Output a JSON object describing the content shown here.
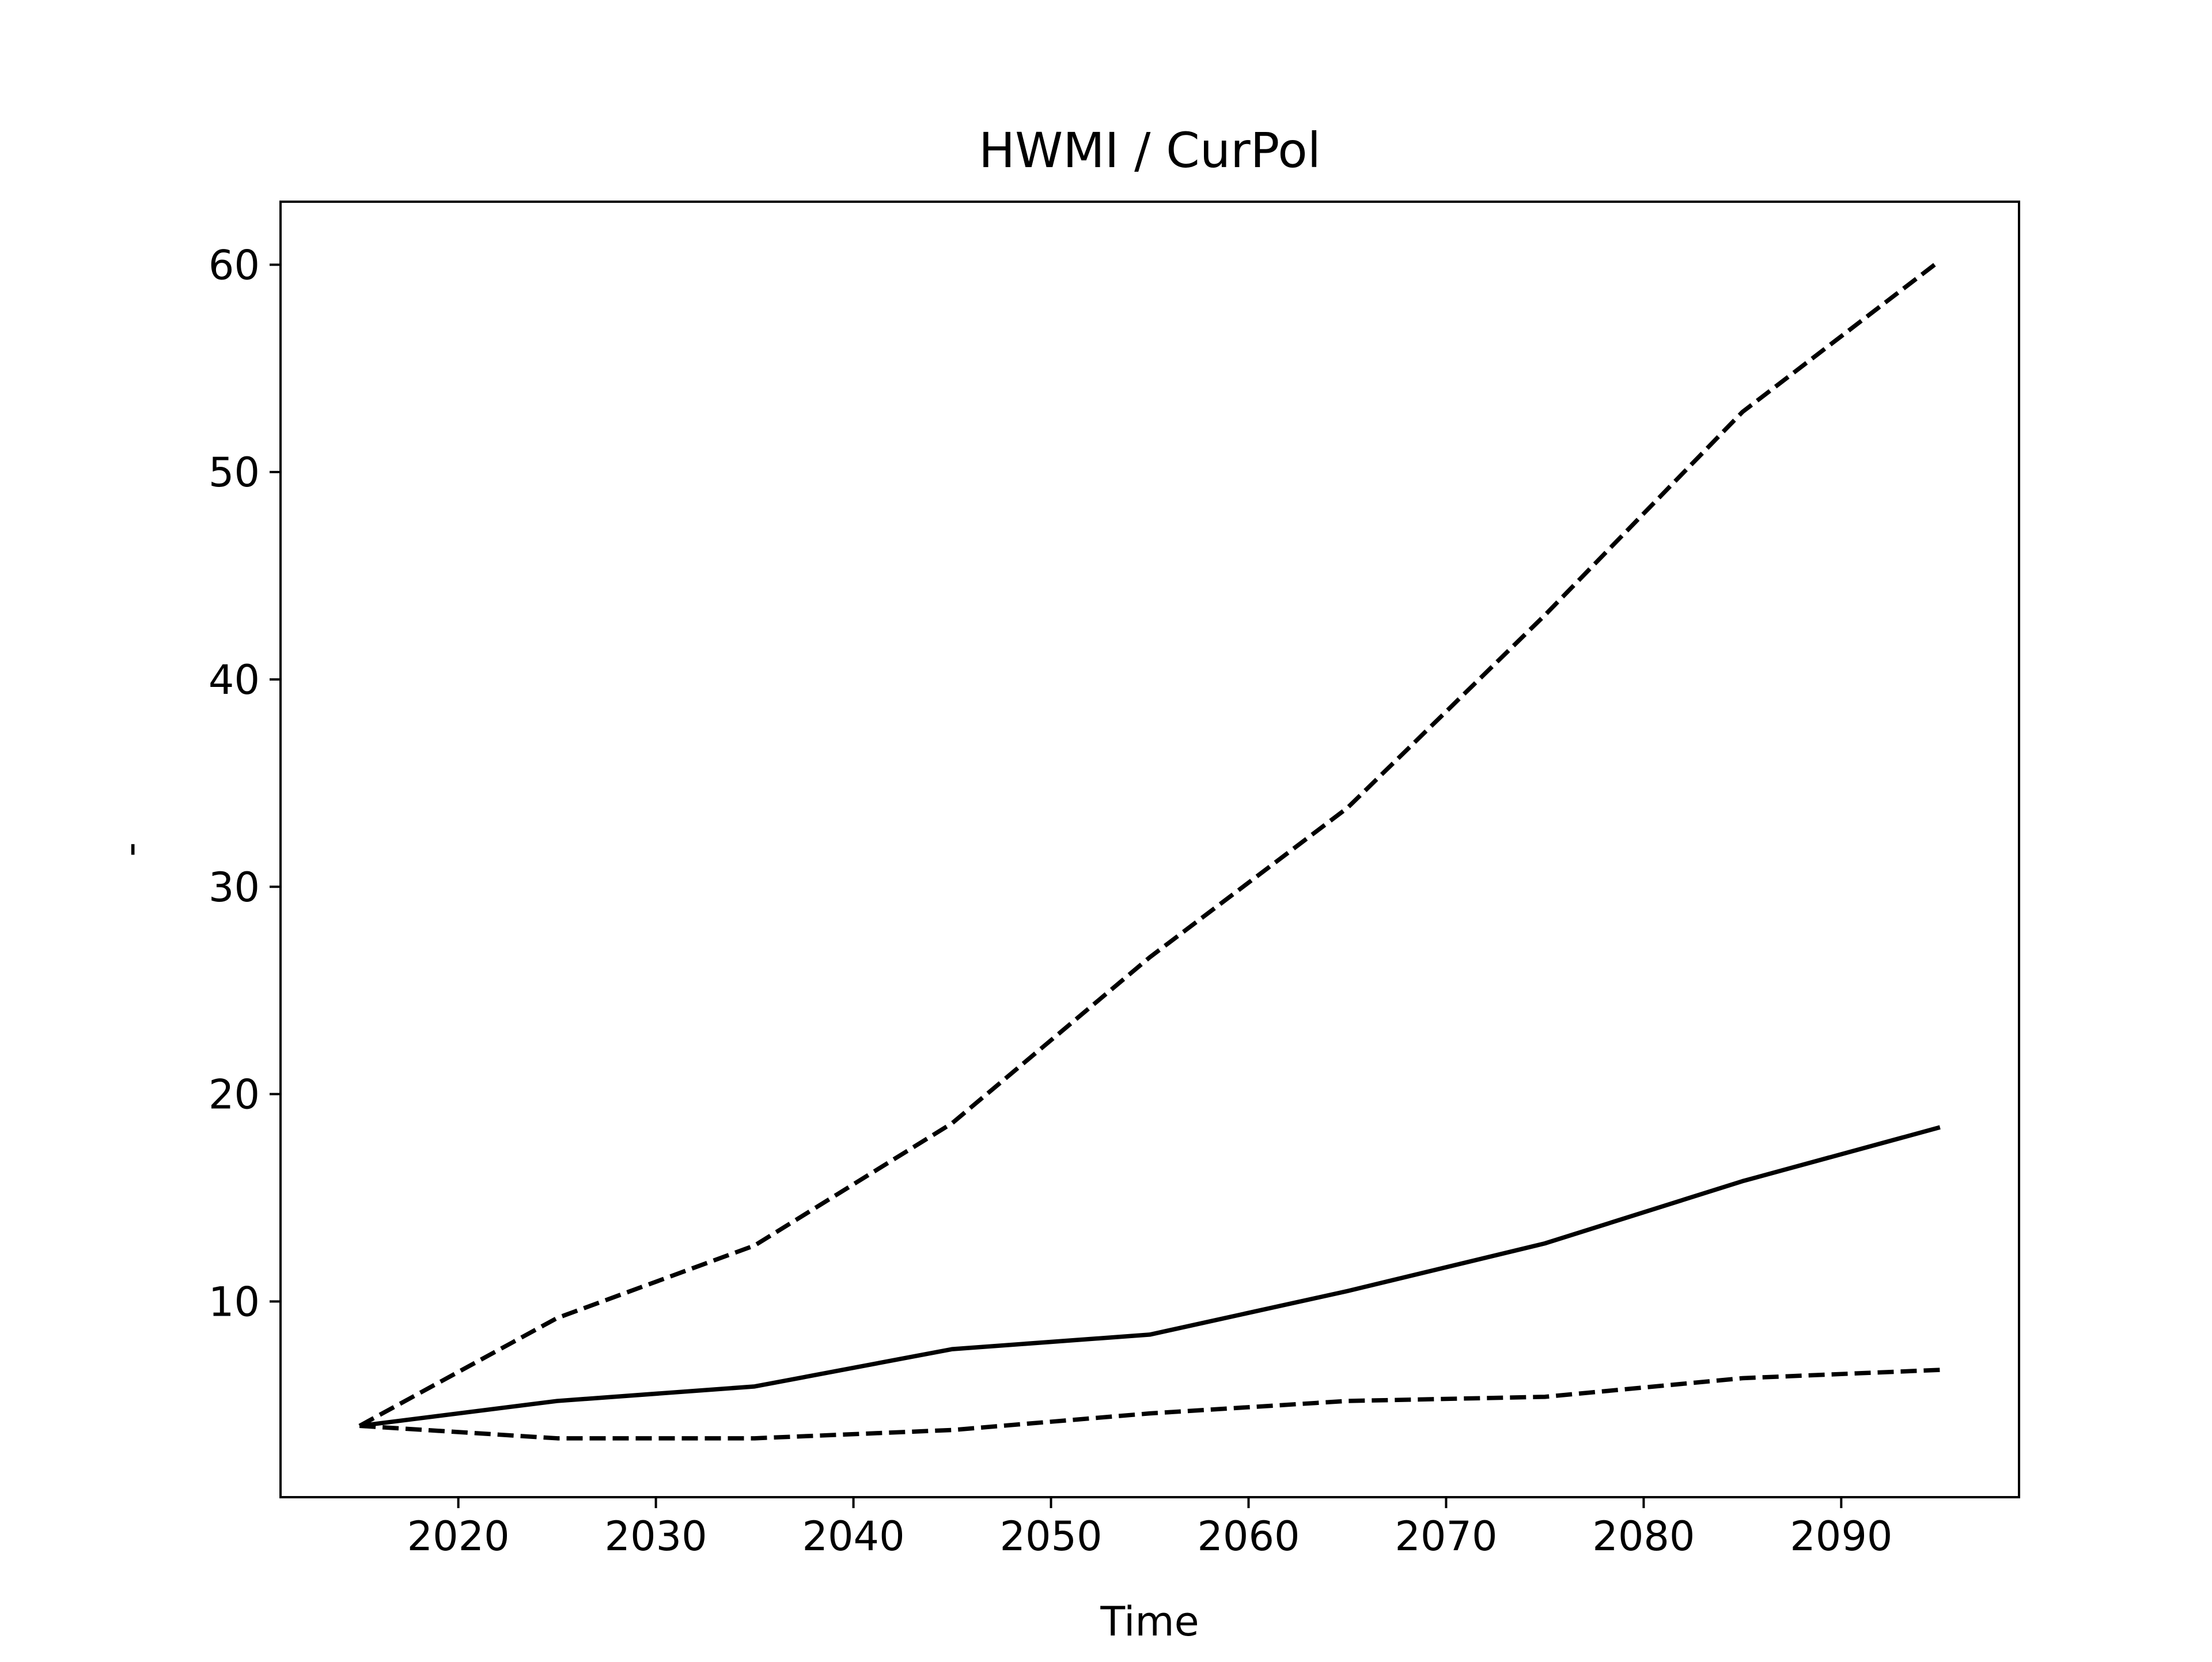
{
  "chart_data": {
    "type": "line",
    "title": "HWMI / CurPol",
    "x_label": "Time",
    "y_label": "-",
    "x": [
      2015,
      2025,
      2035,
      2045,
      2055,
      2065,
      2075,
      2085,
      2095
    ],
    "series": [
      {
        "color": "#000000",
        "linestyle": "dashed",
        "values": [
          4.0,
          9.2,
          12.7,
          18.6,
          26.6,
          33.8,
          43.1,
          52.9,
          60.2
        ]
      },
      {
        "color": "#000000",
        "linestyle": "solid",
        "values": [
          4.0,
          5.2,
          5.9,
          7.7,
          8.4,
          10.5,
          12.8,
          15.8,
          18.4
        ]
      },
      {
        "color": "#000000",
        "linestyle": "dashed",
        "values": [
          4.0,
          3.4,
          3.4,
          3.8,
          4.6,
          5.2,
          5.4,
          6.3,
          6.7
        ]
      }
    ],
    "xlim": [
      2011,
      2099
    ],
    "xticks": [
      2020,
      2030,
      2040,
      2050,
      2060,
      2070,
      2080,
      2090
    ],
    "ylim": [
      0.56,
      63.04
    ],
    "yticks": [
      10,
      20,
      30,
      40,
      50,
      60
    ],
    "grid": false
  }
}
